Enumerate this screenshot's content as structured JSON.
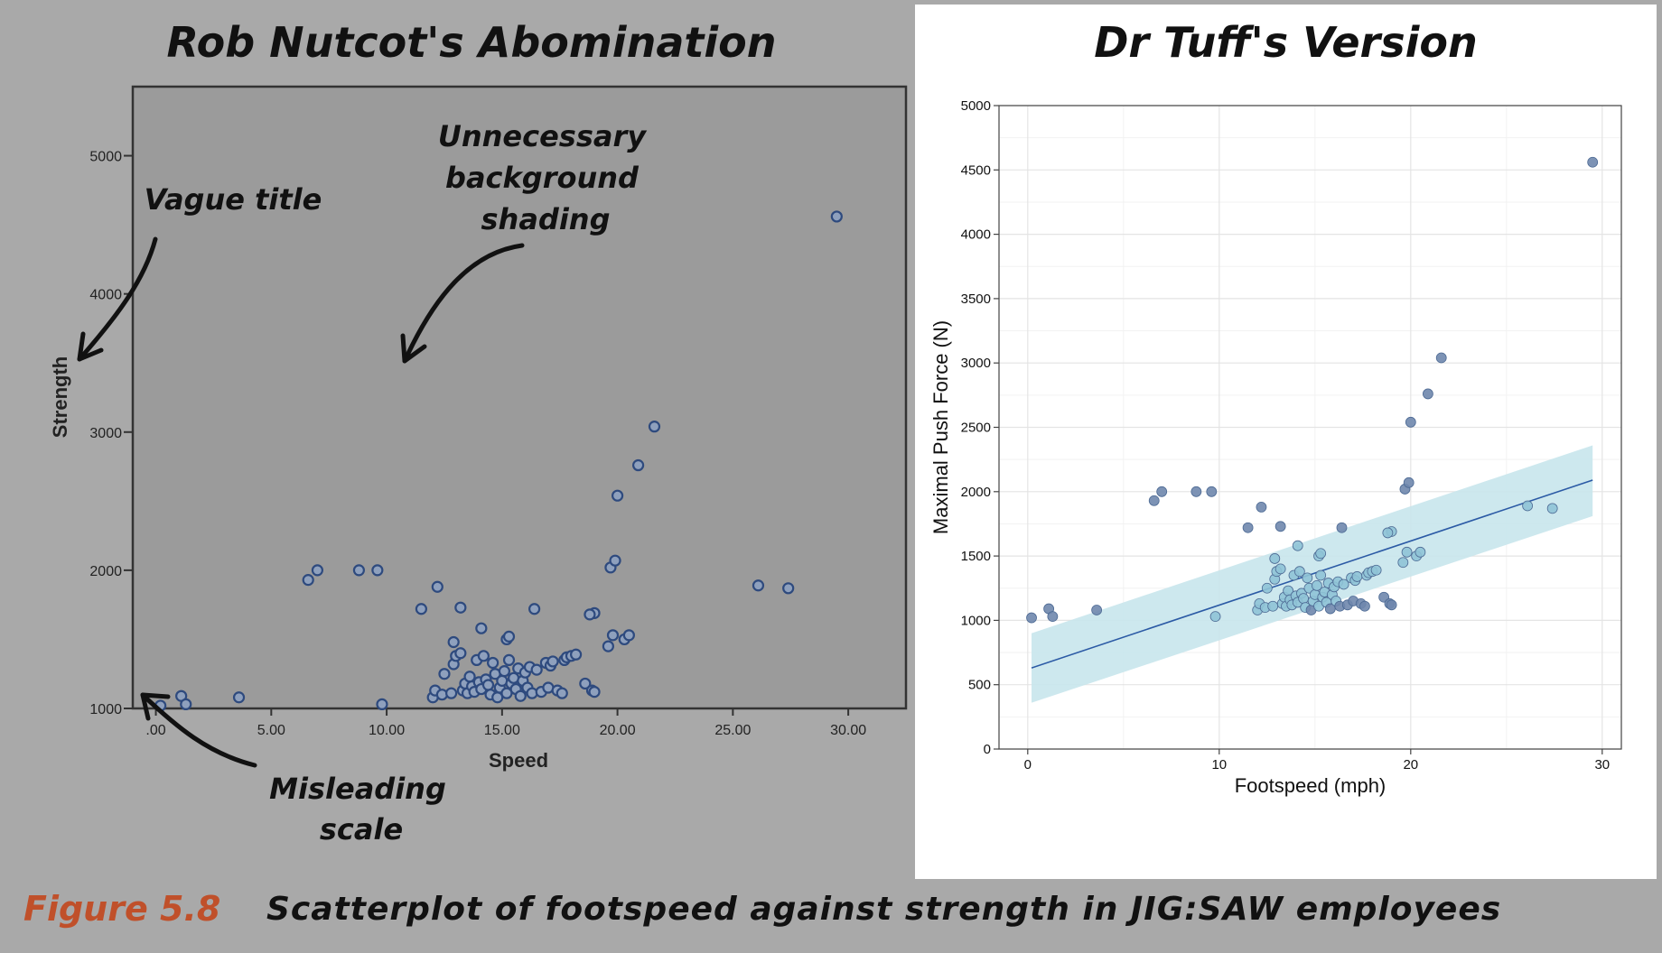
{
  "left": {
    "title": "Rob Nutcot's Abomination",
    "annotations": {
      "vague_title": "Vague title",
      "shading": [
        "Unnecessary",
        "background",
        "shading"
      ],
      "scale": [
        "Misleading",
        "scale"
      ]
    }
  },
  "right": {
    "title": "Dr Tuff's Version"
  },
  "caption": {
    "figure": "Figure 5.8",
    "text": "Scatterplot of footspeed against strength in JIG:SAW employees"
  },
  "colors": {
    "background": "#a9a9a9",
    "plot_bg": "#9b9b9b",
    "point": "#6f87ad",
    "point_light": "#8fc3d6",
    "ci_band": "#c8e5ec",
    "fit_line": "#2b5aa5",
    "caption_accent": "#c0502a"
  },
  "chart_data": [
    {
      "type": "scatter",
      "title": "Rob Nutcot's Abomination",
      "xlabel": "Speed",
      "ylabel": "Strength",
      "xlim": [
        -1,
        32.5
      ],
      "ylim": [
        1000,
        5500
      ],
      "xticks": [
        0,
        5,
        10,
        15,
        20,
        25,
        30
      ],
      "xtick_labels": [
        ".00",
        "5.00",
        "10.00",
        "15.00",
        "20.00",
        "25.00",
        "30.00"
      ],
      "yticks": [
        1000,
        2000,
        3000,
        4000,
        5000
      ],
      "ytick_labels": [
        "1000",
        "2000",
        "3000",
        "4000",
        "5000"
      ],
      "grid": false
    },
    {
      "type": "scatter",
      "title": "Dr Tuff's Version",
      "xlabel": "Footspeed (mph)",
      "ylabel": "Maximal Push Force (N)",
      "xlim": [
        -1.5,
        31
      ],
      "ylim": [
        0,
        5000
      ],
      "xticks": [
        0,
        10,
        20,
        30
      ],
      "yticks": [
        0,
        500,
        1000,
        1500,
        2000,
        2500,
        3000,
        3500,
        4000,
        4500,
        5000
      ],
      "grid": true,
      "fit": {
        "type": "linear",
        "x": [
          0.2,
          29.5
        ],
        "y": [
          630,
          2090
        ],
        "ci_lower": [
          360,
          1810
        ],
        "ci_upper": [
          900,
          2360
        ]
      }
    }
  ],
  "points": [
    [
      0.2,
      1020
    ],
    [
      1.1,
      1090
    ],
    [
      1.3,
      1030
    ],
    [
      3.6,
      1080
    ],
    [
      6.6,
      1930
    ],
    [
      7.0,
      2000
    ],
    [
      8.8,
      2000
    ],
    [
      9.6,
      2000
    ],
    [
      9.8,
      1030
    ],
    [
      11.5,
      1720
    ],
    [
      12.2,
      1880
    ],
    [
      12.9,
      1480
    ],
    [
      13.2,
      1730
    ],
    [
      14.1,
      1580
    ],
    [
      15.2,
      1500
    ],
    [
      15.3,
      1520
    ],
    [
      16.4,
      1720
    ],
    [
      19.0,
      1690
    ],
    [
      19.7,
      2020
    ],
    [
      19.9,
      2070
    ],
    [
      20.0,
      2540
    ],
    [
      20.9,
      2760
    ],
    [
      21.6,
      3040
    ],
    [
      29.5,
      4560
    ],
    [
      26.1,
      1890
    ],
    [
      27.4,
      1870
    ],
    [
      18.8,
      1680
    ],
    [
      19.8,
      1530
    ],
    [
      20.3,
      1500
    ],
    [
      20.5,
      1530
    ],
    [
      19.6,
      1450
    ],
    [
      18.6,
      1180
    ],
    [
      18.9,
      1130
    ],
    [
      19.0,
      1120
    ],
    [
      12.0,
      1080
    ],
    [
      12.1,
      1130
    ],
    [
      12.4,
      1100
    ],
    [
      12.5,
      1250
    ],
    [
      12.8,
      1110
    ],
    [
      12.9,
      1320
    ],
    [
      13.0,
      1380
    ],
    [
      13.2,
      1400
    ],
    [
      13.3,
      1130
    ],
    [
      13.4,
      1180
    ],
    [
      13.5,
      1110
    ],
    [
      13.6,
      1230
    ],
    [
      13.7,
      1160
    ],
    [
      13.8,
      1120
    ],
    [
      13.9,
      1350
    ],
    [
      14.0,
      1190
    ],
    [
      14.1,
      1140
    ],
    [
      14.2,
      1380
    ],
    [
      14.3,
      1210
    ],
    [
      14.4,
      1170
    ],
    [
      14.5,
      1100
    ],
    [
      14.6,
      1330
    ],
    [
      14.7,
      1250
    ],
    [
      14.8,
      1080
    ],
    [
      14.9,
      1150
    ],
    [
      15.0,
      1200
    ],
    [
      15.1,
      1270
    ],
    [
      15.2,
      1110
    ],
    [
      15.3,
      1350
    ],
    [
      15.4,
      1180
    ],
    [
      15.5,
      1220
    ],
    [
      15.6,
      1140
    ],
    [
      15.7,
      1290
    ],
    [
      15.8,
      1090
    ],
    [
      15.9,
      1200
    ],
    [
      16.0,
      1260
    ],
    [
      16.1,
      1150
    ],
    [
      16.2,
      1300
    ],
    [
      16.3,
      1110
    ],
    [
      16.5,
      1280
    ],
    [
      16.7,
      1120
    ],
    [
      16.9,
      1330
    ],
    [
      17.0,
      1150
    ],
    [
      17.1,
      1310
    ],
    [
      17.2,
      1340
    ],
    [
      17.4,
      1130
    ],
    [
      17.6,
      1110
    ],
    [
      17.7,
      1350
    ],
    [
      17.8,
      1370
    ],
    [
      18.0,
      1380
    ],
    [
      18.2,
      1390
    ]
  ]
}
